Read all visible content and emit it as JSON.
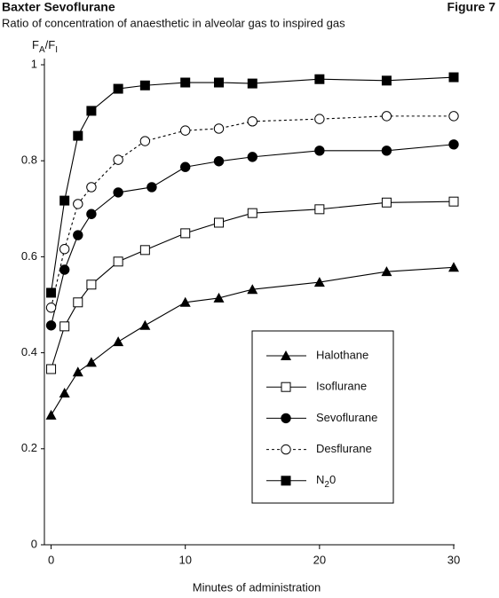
{
  "chart_data": {
    "type": "line",
    "title": "Baxter Sevoflurane",
    "figure_label": "Figure 7",
    "subtitle": "Ratio of concentration of anaesthetic in alveolar gas to inspired gas",
    "ylabel": "FA/FI",
    "xlabel": "Minutes of administration",
    "xlim": [
      -0.5,
      30
    ],
    "xticks": [
      0,
      10,
      20,
      30
    ],
    "ylim": [
      0,
      1
    ],
    "yticks": [
      0,
      0.2,
      0.4,
      0.6,
      0.8,
      1
    ],
    "series": [
      {
        "name": "Halothane",
        "color": "#000000",
        "marker": "triangle",
        "dashed": false,
        "x": [
          0,
          1,
          2,
          3,
          5,
          7,
          10,
          12.5,
          15,
          20,
          25,
          30
        ],
        "values": [
          0.27,
          0.316,
          0.36,
          0.38,
          0.423,
          0.457,
          0.505,
          0.514,
          0.532,
          0.547,
          0.569,
          0.578
        ]
      },
      {
        "name": "Isoflurane",
        "color": "#000000",
        "marker": "open-square",
        "dashed": false,
        "x": [
          0,
          1,
          2,
          3,
          5,
          7,
          10,
          12.5,
          15,
          20,
          25,
          30
        ],
        "values": [
          0.366,
          0.455,
          0.505,
          0.542,
          0.59,
          0.614,
          0.649,
          0.671,
          0.691,
          0.699,
          0.713,
          0.715
        ]
      },
      {
        "name": "Sevoflurane",
        "color": "#000000",
        "marker": "circle",
        "dashed": false,
        "x": [
          0,
          1,
          2,
          3,
          5,
          7.5,
          10,
          12.5,
          15,
          20,
          25,
          30
        ],
        "values": [
          0.457,
          0.573,
          0.645,
          0.689,
          0.734,
          0.745,
          0.787,
          0.799,
          0.808,
          0.821,
          0.821,
          0.834
        ]
      },
      {
        "name": "Desflurane",
        "color": "#000000",
        "marker": "open-circle",
        "dashed": true,
        "x": [
          0,
          1,
          2,
          3,
          5,
          7,
          10,
          12.5,
          15,
          20,
          25,
          30
        ],
        "values": [
          0.494,
          0.616,
          0.71,
          0.745,
          0.802,
          0.841,
          0.863,
          0.867,
          0.882,
          0.887,
          0.893,
          0.893
        ]
      },
      {
        "name": "N20",
        "color": "#000000",
        "marker": "square",
        "dashed": false,
        "x": [
          0,
          1,
          2,
          3,
          5,
          7,
          10,
          12.5,
          15,
          20,
          25,
          30
        ],
        "values": [
          0.525,
          0.717,
          0.852,
          0.904,
          0.95,
          0.957,
          0.963,
          0.963,
          0.961,
          0.97,
          0.967,
          0.974
        ]
      }
    ]
  }
}
